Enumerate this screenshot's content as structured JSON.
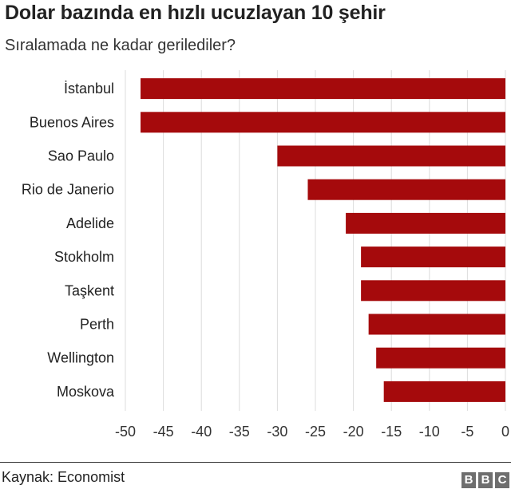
{
  "chart_data": {
    "type": "bar",
    "orientation": "horizontal",
    "title": "Dolar bazında en hızlı ucuzlayan 10 şehir",
    "subtitle": "Sıralamada ne kadar gerilediler?",
    "categories": [
      "İstanbul",
      "Buenos Aires",
      "Sao Paulo",
      "Rio de Janerio",
      "Adelide",
      "Stokholm",
      "Taşkent",
      "Perth",
      "Wellington",
      "Moskova"
    ],
    "values": [
      -48,
      -48,
      -30,
      -26,
      -21,
      -19,
      -19,
      -18,
      -17,
      -16
    ],
    "xlim": [
      -50,
      0
    ],
    "xticks": [
      "-50",
      "-45",
      "-40",
      "-35",
      "-30",
      "-25",
      "-20",
      "-15",
      "-10",
      "-5",
      "0"
    ],
    "grid": "vertical gridlines",
    "bar_color": "#a50a0c",
    "xlabel": "",
    "ylabel": ""
  },
  "footer": {
    "source": "Kaynak: Economist",
    "logo_letters": [
      "B",
      "B",
      "C"
    ]
  }
}
